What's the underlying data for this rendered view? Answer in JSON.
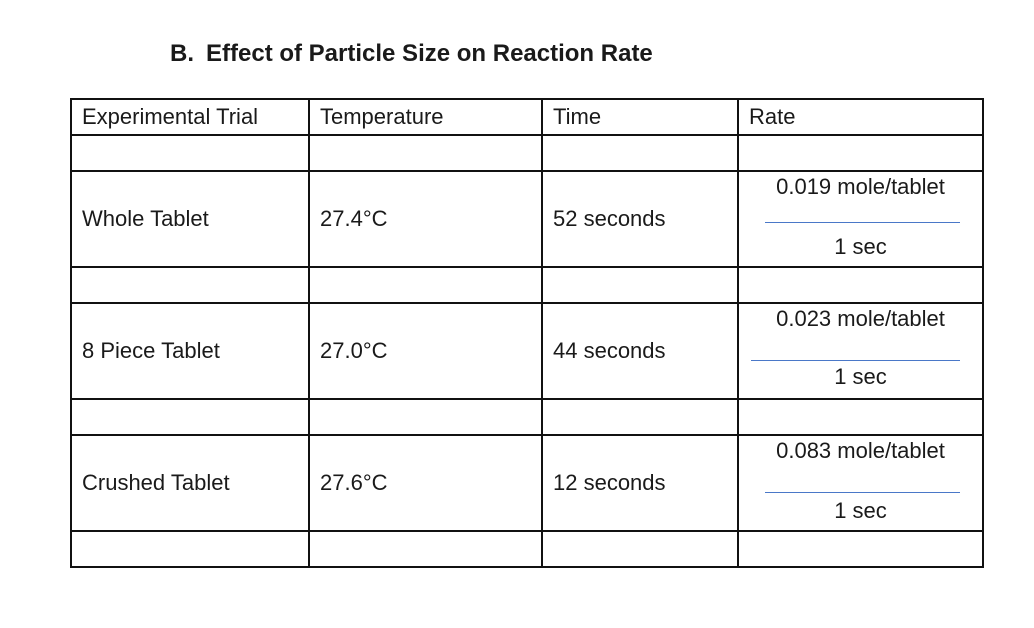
{
  "section": {
    "label": "B.",
    "title": "Effect of Particle Size on Reaction Rate"
  },
  "table": {
    "headers": [
      "Experimental Trial",
      "Temperature",
      "Time",
      "Rate"
    ],
    "rows": [
      {
        "trial": "Whole Tablet",
        "temperature": "27.4°C",
        "time": "52 seconds",
        "rate_numerator": "0.019 mole/tablet",
        "rate_denominator": "1 sec"
      },
      {
        "trial": "8 Piece Tablet",
        "temperature": "27.0°C",
        "time": "44 seconds",
        "rate_numerator": "0.023 mole/tablet",
        "rate_denominator": "1 sec"
      },
      {
        "trial": "Crushed Tablet",
        "temperature": "27.6°C",
        "time": "12 seconds",
        "rate_numerator": "0.083 mole/tablet",
        "rate_denominator": "1 sec"
      }
    ]
  },
  "colors": {
    "fraction_line": "#4a78c8",
    "border": "#111111"
  }
}
